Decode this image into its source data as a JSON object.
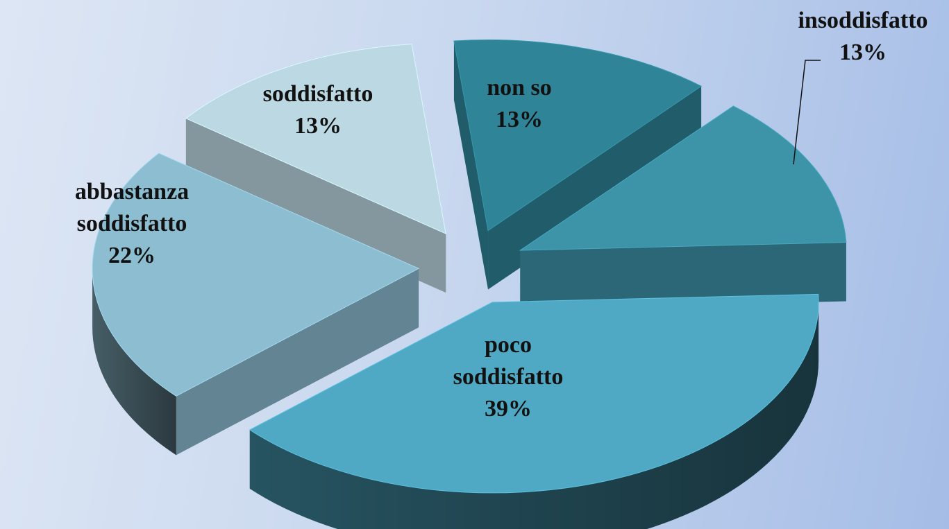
{
  "chart_data": {
    "type": "pie",
    "style": "3d-exploded",
    "title": "",
    "legend": "none",
    "slices": [
      {
        "label_lines": [
          "non so"
        ],
        "value": 13,
        "value_label": "13%",
        "color": "#2f8497"
      },
      {
        "label_lines": [
          "insoddisfatto"
        ],
        "value": 13,
        "value_label": "13%",
        "color": "#3d93a8"
      },
      {
        "label_lines": [
          "poco",
          "soddisfatto"
        ],
        "value": 39,
        "value_label": "39%",
        "color": "#4fa9c4"
      },
      {
        "label_lines": [
          "abbastanza",
          "soddisfatto"
        ],
        "value": 22,
        "value_label": "22%",
        "color": "#8dbdd0"
      },
      {
        "label_lines": [
          "soddisfatto"
        ],
        "value": 13,
        "value_label": "13%",
        "color": "#bcd8e2"
      }
    ]
  }
}
